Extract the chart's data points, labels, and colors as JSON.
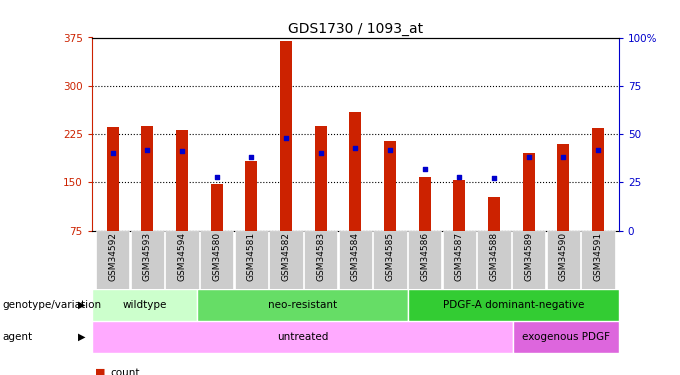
{
  "title": "GDS1730 / 1093_at",
  "samples": [
    "GSM34592",
    "GSM34593",
    "GSM34594",
    "GSM34580",
    "GSM34581",
    "GSM34582",
    "GSM34583",
    "GSM34584",
    "GSM34585",
    "GSM34586",
    "GSM34587",
    "GSM34588",
    "GSM34589",
    "GSM34590",
    "GSM34591"
  ],
  "counts": [
    236,
    238,
    232,
    148,
    183,
    370,
    237,
    260,
    215,
    158,
    154,
    128,
    195,
    210,
    235
  ],
  "percentile_ranks": [
    40,
    42,
    41,
    28,
    38,
    48,
    40,
    43,
    42,
    32,
    28,
    27,
    38,
    38,
    42
  ],
  "bar_color": "#CC2200",
  "pct_color": "#0000CC",
  "y_min": 75,
  "y_max": 375,
  "y_ticks": [
    75,
    150,
    225,
    300,
    375
  ],
  "y2_ticks": [
    0,
    25,
    50,
    75,
    100
  ],
  "y2_labels": [
    "0",
    "25",
    "50",
    "75",
    "100%"
  ],
  "genotype_groups": [
    {
      "label": "wildtype",
      "start": 0,
      "end": 3,
      "color": "#CCFFCC"
    },
    {
      "label": "neo-resistant",
      "start": 3,
      "end": 9,
      "color": "#66DD66"
    },
    {
      "label": "PDGF-A dominant-negative",
      "start": 9,
      "end": 15,
      "color": "#33CC33"
    }
  ],
  "agent_groups": [
    {
      "label": "untreated",
      "start": 0,
      "end": 12,
      "color": "#FFAAFF"
    },
    {
      "label": "exogenous PDGF",
      "start": 12,
      "end": 15,
      "color": "#DD66DD"
    }
  ],
  "background_color": "#FFFFFF",
  "left_axis_color": "#CC2200",
  "right_axis_color": "#0000CC",
  "tick_label_bg": "#CCCCCC",
  "bar_width": 0.35
}
